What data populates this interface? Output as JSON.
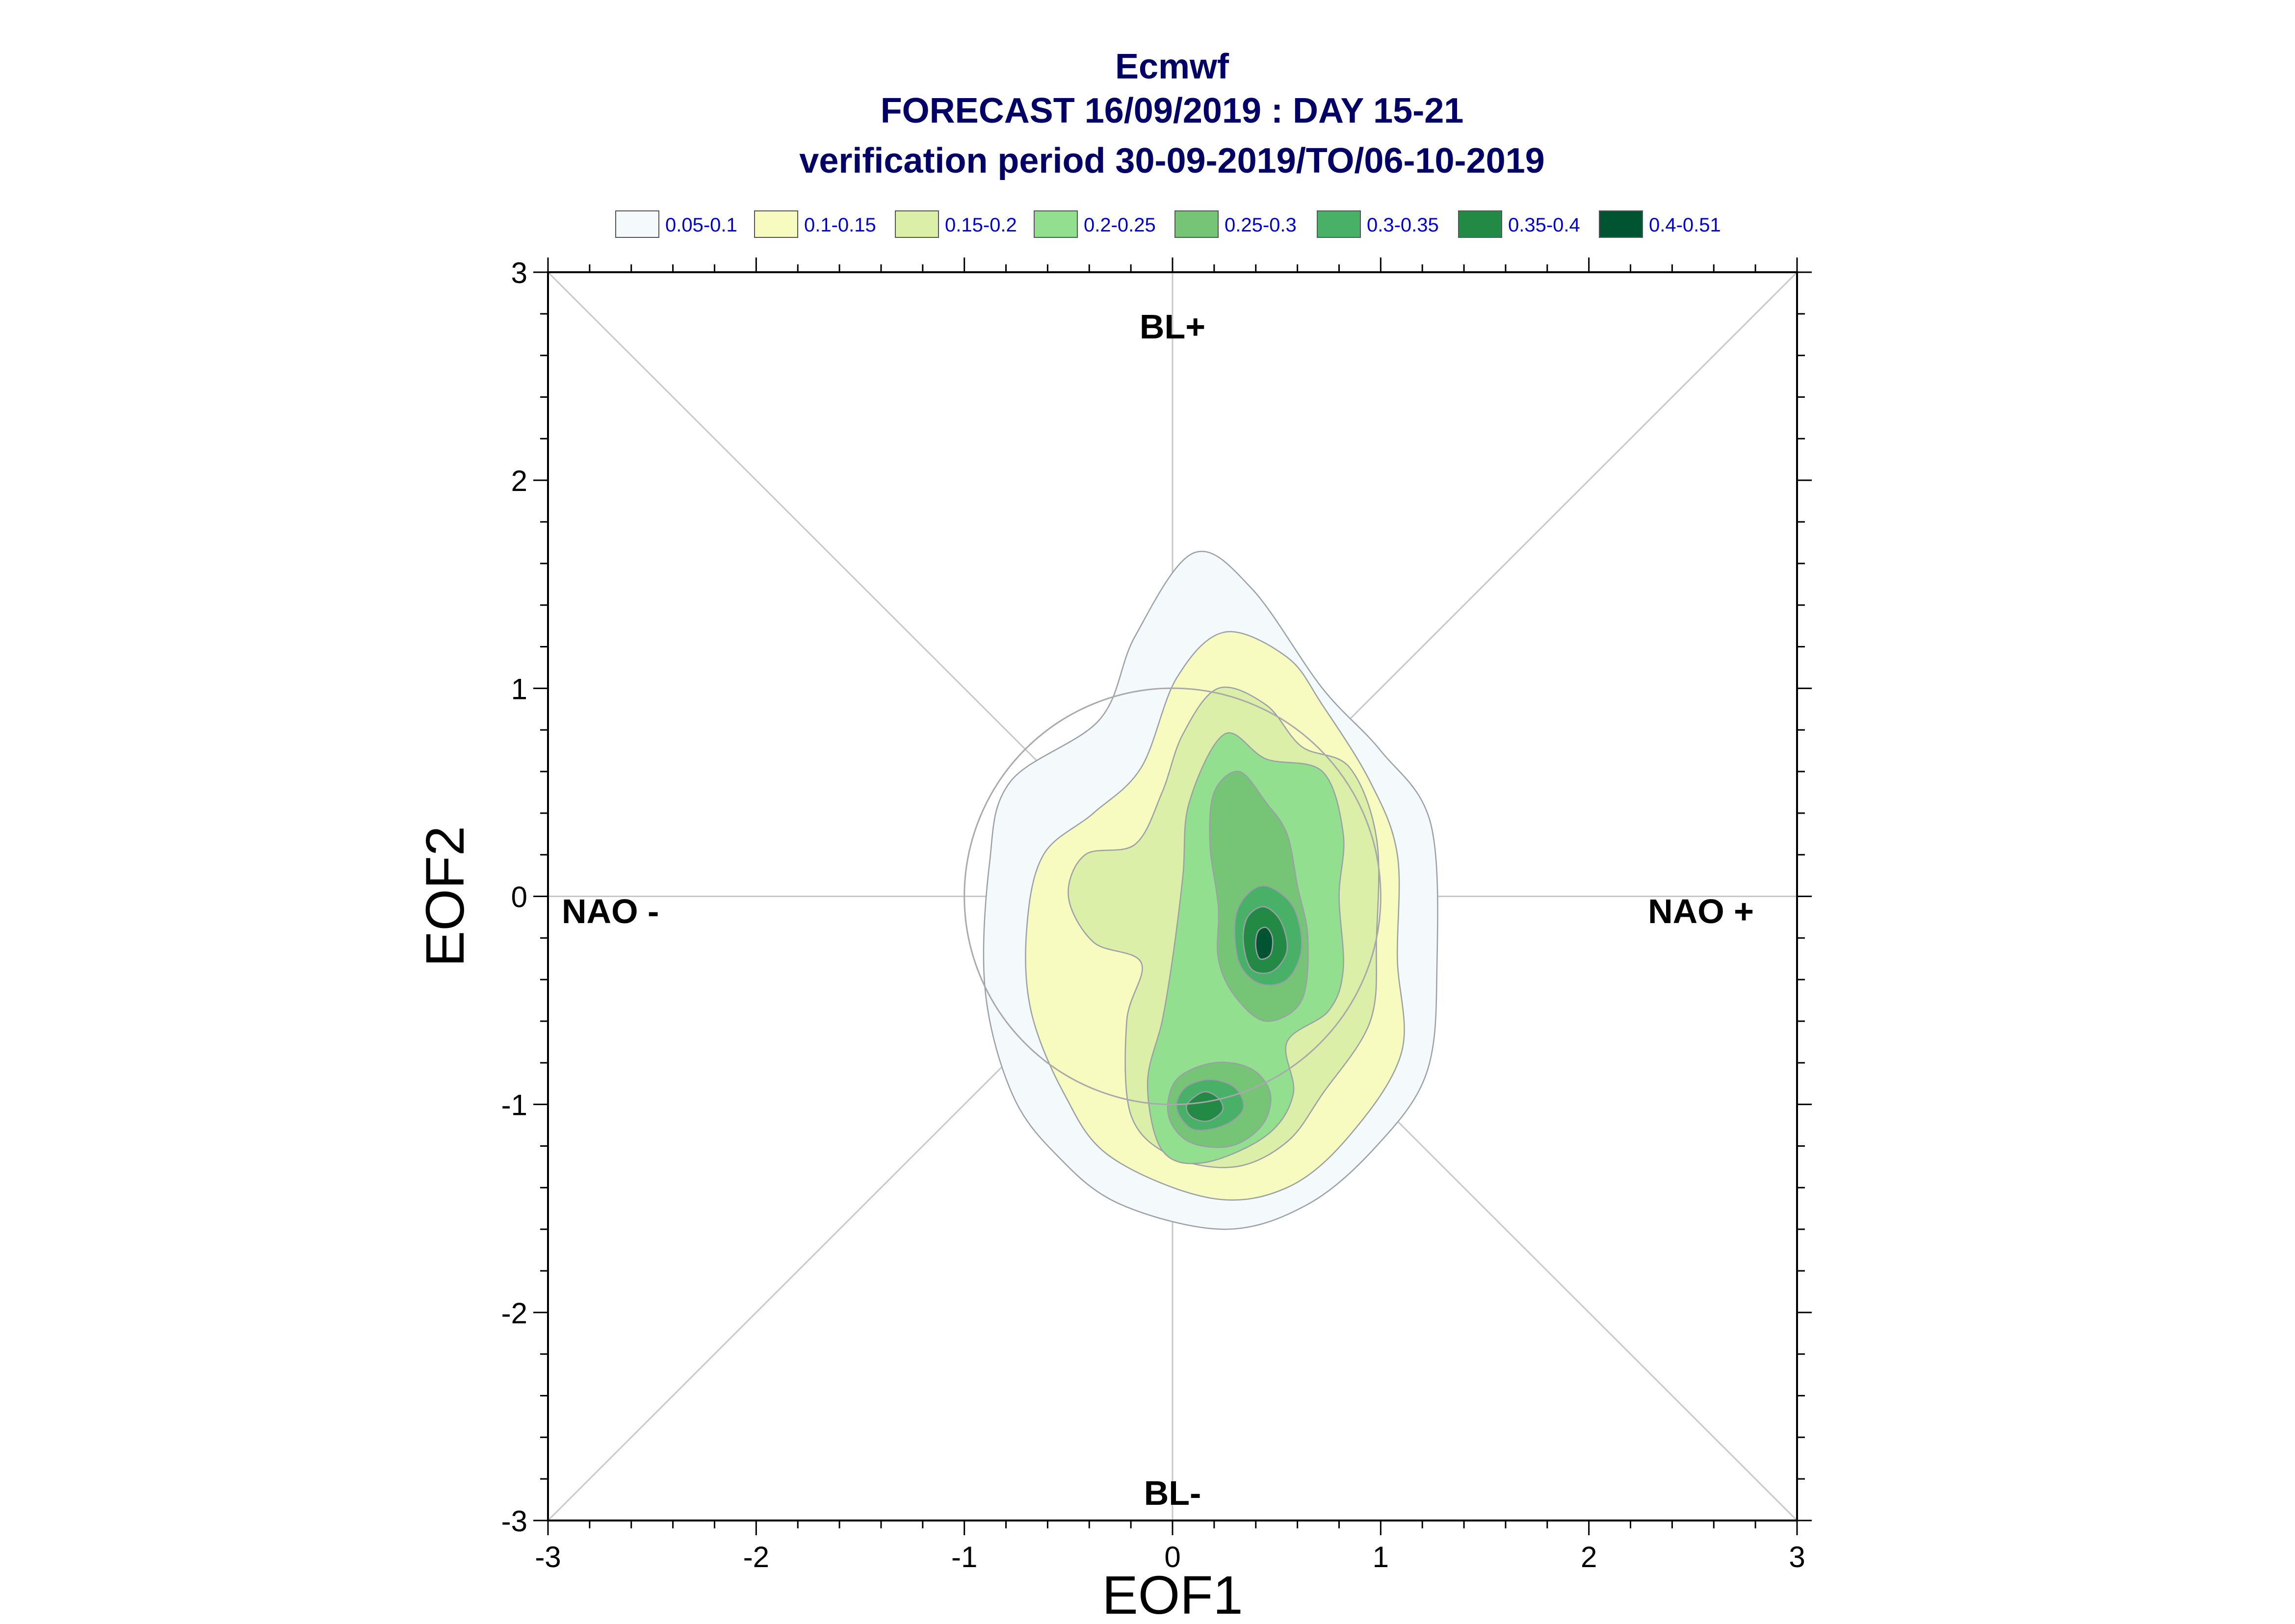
{
  "chart_data": {
    "type": "contour",
    "title": [
      "Ecmwf",
      "FORECAST 16/09/2019 : DAY 15-21",
      "verification period 30-09-2019/TO/06-10-2019"
    ],
    "xlabel": "EOF1",
    "ylabel": "EOF2",
    "xlim": [
      -3,
      3
    ],
    "ylim": [
      -3,
      3
    ],
    "xticks": [
      "-3",
      "-2",
      "-1",
      "0",
      "1",
      "2",
      "3"
    ],
    "yticks": [
      "-3",
      "-2",
      "-1",
      "0",
      "1",
      "2",
      "3"
    ],
    "grid": false,
    "reference_circle_radius": 1,
    "legend_position": "top",
    "regime_labels": {
      "top": "BL+",
      "bottom": "BL-",
      "left": "NAO -",
      "right": "NAO +"
    },
    "levels": [
      {
        "label": "0.05-0.1",
        "color": "#f4f9fc"
      },
      {
        "label": "0.1-0.15",
        "color": "#f7fbc0"
      },
      {
        "label": "0.15-0.2",
        "color": "#dcefa8"
      },
      {
        "label": "0.2-0.25",
        "color": "#91df8f"
      },
      {
        "label": "0.25-0.3",
        "color": "#76c576"
      },
      {
        "label": "0.3-0.35",
        "color": "#48b067"
      },
      {
        "label": "0.35-0.4",
        "color": "#238a45"
      },
      {
        "label": "0.4-0.51",
        "color": "#015432"
      }
    ],
    "density_peaks": [
      {
        "x": 0.45,
        "y": -0.22,
        "max": 0.51
      },
      {
        "x": 0.15,
        "y": -1.0,
        "max": 0.4
      }
    ]
  }
}
